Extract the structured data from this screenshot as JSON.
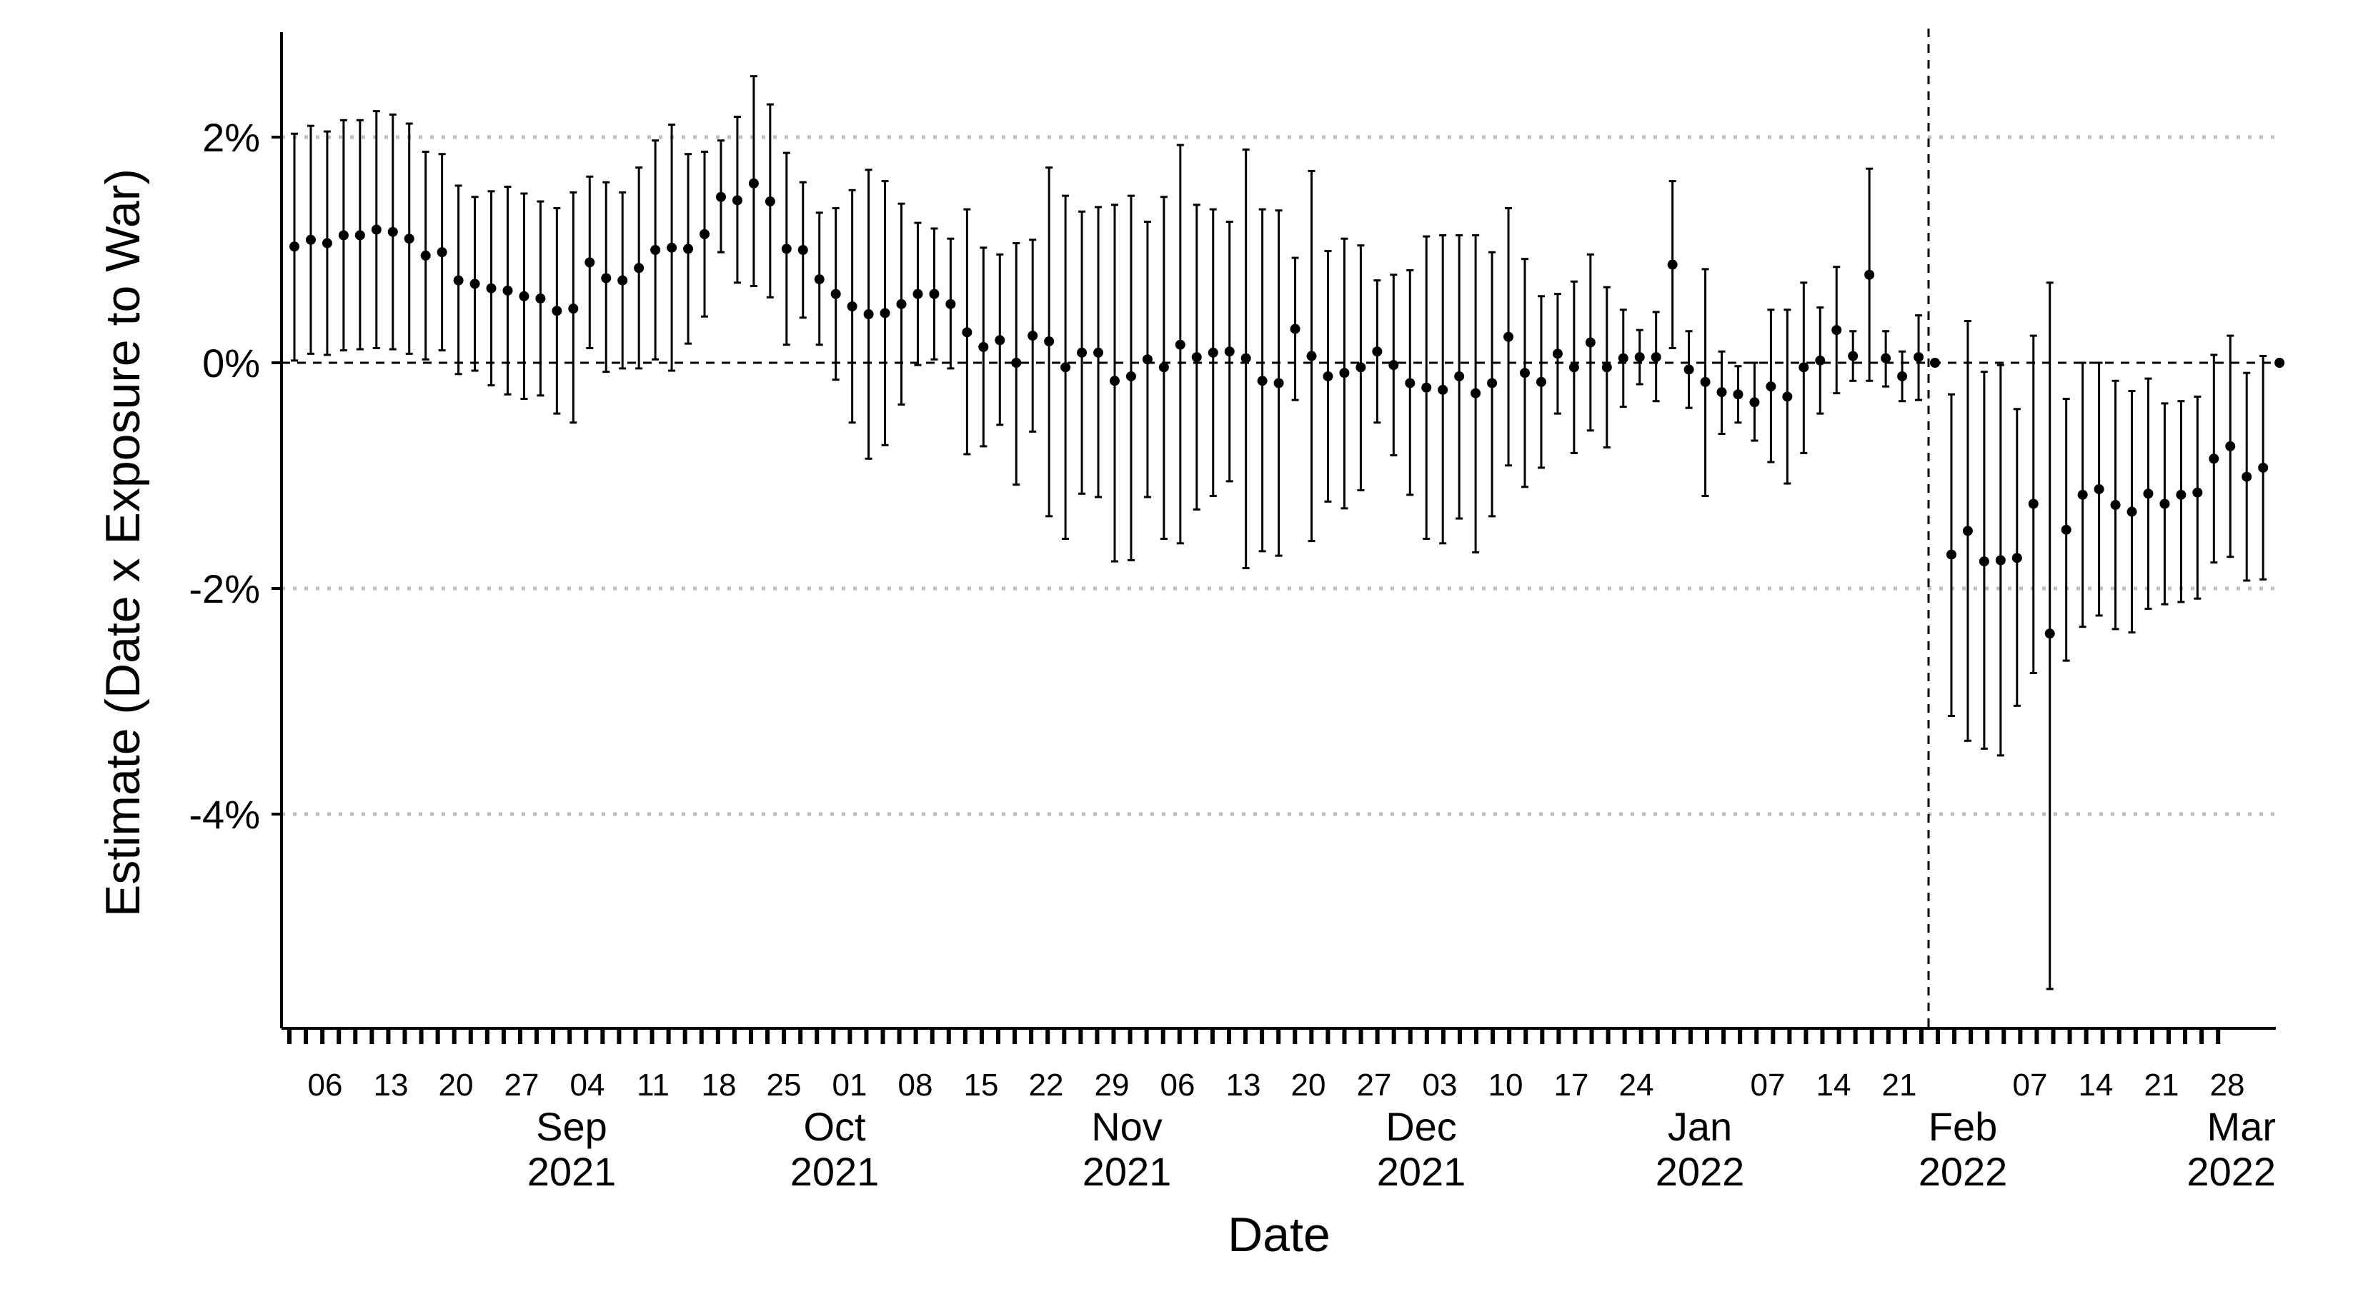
{
  "chart_data": {
    "type": "scatter",
    "subtype": "point-estimates-with-95-ci",
    "xlabel": "Date",
    "ylabel": "Estimate (Date x Exposure to War)",
    "y_unit": "percent",
    "ylim": [
      -5.9,
      2.95
    ],
    "yticks": [
      2,
      0,
      -2,
      -4
    ],
    "ytick_labels": [
      "2%",
      "0%",
      "-2%",
      "-4%"
    ],
    "y_gridlines": [
      2,
      -2,
      -4
    ],
    "reference_line_y": 0,
    "reference_line_x": "2022-02-24",
    "grid": "dotted horizontal at 2%, -2%, -4%",
    "xlim": [
      "2021-08-29",
      "2022-03-01"
    ],
    "x_day_labels": [
      {
        "date": "2021-08-06",
        "label": "06"
      },
      {
        "date": "2021-08-13",
        "label": "13"
      },
      {
        "date": "2021-08-20",
        "label": "20"
      },
      {
        "date": "2021-08-27",
        "label": "27"
      },
      {
        "date": "2021-09-04",
        "label": "04"
      },
      {
        "date": "2021-09-11",
        "label": "11"
      },
      {
        "date": "2021-09-18",
        "label": "18"
      },
      {
        "date": "2021-09-25",
        "label": "25"
      },
      {
        "date": "2021-10-01",
        "label": "01"
      },
      {
        "date": "2021-10-08",
        "label": "08"
      },
      {
        "date": "2021-10-15",
        "label": "15"
      },
      {
        "date": "2021-10-22",
        "label": "22"
      },
      {
        "date": "2021-10-29",
        "label": "29"
      },
      {
        "date": "2021-11-06",
        "label": "06"
      },
      {
        "date": "2021-11-13",
        "label": "13"
      },
      {
        "date": "2021-11-20",
        "label": "20"
      },
      {
        "date": "2021-11-27",
        "label": "27"
      },
      {
        "date": "2021-12-03",
        "label": "03"
      },
      {
        "date": "2021-12-10",
        "label": "10"
      },
      {
        "date": "2021-12-17",
        "label": "17"
      },
      {
        "date": "2021-12-24",
        "label": "24"
      },
      {
        "date": "2022-01-07",
        "label": "07"
      },
      {
        "date": "2022-01-14",
        "label": "14"
      },
      {
        "date": "2022-01-21",
        "label": "21"
      },
      {
        "date": "2022-02-07",
        "label": "07"
      },
      {
        "date": "2022-02-14",
        "label": "14"
      },
      {
        "date": "2022-02-21",
        "label": "21"
      },
      {
        "date": "2022-02-28",
        "label": "28"
      }
    ],
    "x_month_labels": [
      {
        "month": "Sep",
        "year": "2021",
        "date": "2021-09-01"
      },
      {
        "month": "Oct",
        "year": "2021",
        "date": "2021-10-01"
      },
      {
        "month": "Nov",
        "year": "2021",
        "date": "2021-11-01"
      },
      {
        "month": "Dec",
        "year": "2021",
        "date": "2021-12-01"
      },
      {
        "month": "Jan",
        "year": "2022",
        "date": "2022-01-01"
      },
      {
        "month": "Feb",
        "year": "2022",
        "date": "2022-02-01"
      },
      {
        "month": "Mar",
        "year": "2022",
        "date": "2022-03-01"
      }
    ],
    "points": [
      {
        "date": "2021-08-03",
        "y": 1.03,
        "lo": 0.02,
        "hi": 2.03
      },
      {
        "date": "2021-08-05",
        "y": 1.09,
        "lo": 0.08,
        "hi": 2.1
      },
      {
        "date": "2021-08-07",
        "y": 1.06,
        "lo": 0.07,
        "hi": 2.05
      },
      {
        "date": "2021-08-09",
        "y": 1.13,
        "lo": 0.11,
        "hi": 2.15
      },
      {
        "date": "2021-08-11",
        "y": 1.13,
        "lo": 0.12,
        "hi": 2.15
      },
      {
        "date": "2021-08-13",
        "y": 1.18,
        "lo": 0.13,
        "hi": 2.23
      },
      {
        "date": "2021-08-15",
        "y": 1.16,
        "lo": 0.12,
        "hi": 2.2
      },
      {
        "date": "2021-08-17",
        "y": 1.1,
        "lo": 0.08,
        "hi": 2.12
      },
      {
        "date": "2021-08-19",
        "y": 0.95,
        "lo": 0.03,
        "hi": 1.87
      },
      {
        "date": "2021-08-21",
        "y": 0.98,
        "lo": 0.11,
        "hi": 1.85
      },
      {
        "date": "2021-08-23",
        "y": 0.73,
        "lo": -0.1,
        "hi": 1.57
      },
      {
        "date": "2021-08-25",
        "y": 0.7,
        "lo": -0.07,
        "hi": 1.47
      },
      {
        "date": "2021-08-27",
        "y": 0.66,
        "lo": -0.2,
        "hi": 1.52
      },
      {
        "date": "2021-08-29",
        "y": 0.64,
        "lo": -0.28,
        "hi": 1.56
      },
      {
        "date": "2021-08-31",
        "y": 0.59,
        "lo": -0.32,
        "hi": 1.5
      },
      {
        "date": "2021-09-02",
        "y": 0.57,
        "lo": -0.29,
        "hi": 1.43
      },
      {
        "date": "2021-09-04",
        "y": 0.46,
        "lo": -0.45,
        "hi": 1.37
      },
      {
        "date": "2021-09-06",
        "y": 0.48,
        "lo": -0.53,
        "hi": 1.51
      },
      {
        "date": "2021-09-08",
        "y": 0.89,
        "lo": 0.13,
        "hi": 1.65
      },
      {
        "date": "2021-09-10",
        "y": 0.75,
        "lo": -0.08,
        "hi": 1.6
      },
      {
        "date": "2021-09-12",
        "y": 0.73,
        "lo": -0.05,
        "hi": 1.51
      },
      {
        "date": "2021-09-14",
        "y": 0.84,
        "lo": -0.05,
        "hi": 1.73
      },
      {
        "date": "2021-09-16",
        "y": 1.0,
        "lo": 0.03,
        "hi": 1.97
      },
      {
        "date": "2021-09-18",
        "y": 1.02,
        "lo": -0.07,
        "hi": 2.11
      },
      {
        "date": "2021-09-20",
        "y": 1.01,
        "lo": 0.17,
        "hi": 1.85
      },
      {
        "date": "2021-09-22",
        "y": 1.14,
        "lo": 0.41,
        "hi": 1.87
      },
      {
        "date": "2021-09-24",
        "y": 1.47,
        "lo": 0.98,
        "hi": 1.97
      },
      {
        "date": "2021-09-26",
        "y": 1.44,
        "lo": 0.71,
        "hi": 2.18
      },
      {
        "date": "2021-09-28",
        "y": 1.59,
        "lo": 0.68,
        "hi": 2.54
      },
      {
        "date": "2021-09-30",
        "y": 1.43,
        "lo": 0.58,
        "hi": 2.29
      },
      {
        "date": "2021-10-02",
        "y": 1.01,
        "lo": 0.16,
        "hi": 1.86
      },
      {
        "date": "2021-10-04",
        "y": 1.0,
        "lo": 0.4,
        "hi": 1.6
      },
      {
        "date": "2021-10-06",
        "y": 0.74,
        "lo": 0.16,
        "hi": 1.33
      },
      {
        "date": "2021-10-08",
        "y": 0.61,
        "lo": -0.15,
        "hi": 1.37
      },
      {
        "date": "2021-10-10",
        "y": 0.5,
        "lo": -0.53,
        "hi": 1.53
      },
      {
        "date": "2021-10-12",
        "y": 0.43,
        "lo": -0.85,
        "hi": 1.71
      },
      {
        "date": "2021-10-14",
        "y": 0.44,
        "lo": -0.73,
        "hi": 1.61
      },
      {
        "date": "2021-10-16",
        "y": 0.52,
        "lo": -0.37,
        "hi": 1.41
      },
      {
        "date": "2021-10-18",
        "y": 0.61,
        "lo": -0.02,
        "hi": 1.24
      },
      {
        "date": "2021-10-20",
        "y": 0.61,
        "lo": 0.03,
        "hi": 1.19
      },
      {
        "date": "2021-10-22",
        "y": 0.52,
        "lo": -0.05,
        "hi": 1.1
      },
      {
        "date": "2021-10-24",
        "y": 0.27,
        "lo": -0.81,
        "hi": 1.36
      },
      {
        "date": "2021-10-26",
        "y": 0.14,
        "lo": -0.74,
        "hi": 1.02
      },
      {
        "date": "2021-10-28",
        "y": 0.2,
        "lo": -0.55,
        "hi": 0.96
      },
      {
        "date": "2021-10-30",
        "y": 0.0,
        "lo": -1.08,
        "hi": 1.06
      },
      {
        "date": "2021-11-01",
        "y": 0.24,
        "lo": -0.61,
        "hi": 1.09
      },
      {
        "date": "2021-11-03",
        "y": 0.19,
        "lo": -1.36,
        "hi": 1.73
      },
      {
        "date": "2021-11-05",
        "y": -0.04,
        "lo": -1.56,
        "hi": 1.48
      },
      {
        "date": "2021-11-07",
        "y": 0.09,
        "lo": -1.16,
        "hi": 1.34
      },
      {
        "date": "2021-11-09",
        "y": 0.09,
        "lo": -1.19,
        "hi": 1.38
      },
      {
        "date": "2021-11-11",
        "y": -0.16,
        "lo": -1.76,
        "hi": 1.4
      },
      {
        "date": "2021-11-13",
        "y": -0.12,
        "lo": -1.75,
        "hi": 1.48
      },
      {
        "date": "2021-11-15",
        "y": 0.03,
        "lo": -1.19,
        "hi": 1.25
      },
      {
        "date": "2021-11-17",
        "y": -0.04,
        "lo": -1.56,
        "hi": 1.47
      },
      {
        "date": "2021-11-19",
        "y": 0.16,
        "lo": -1.6,
        "hi": 1.93
      },
      {
        "date": "2021-11-21",
        "y": 0.05,
        "lo": -1.3,
        "hi": 1.4
      },
      {
        "date": "2021-11-23",
        "y": 0.09,
        "lo": -1.18,
        "hi": 1.36
      },
      {
        "date": "2021-11-25",
        "y": 0.1,
        "lo": -1.05,
        "hi": 1.25
      },
      {
        "date": "2021-11-27",
        "y": 0.04,
        "lo": -1.82,
        "hi": 1.89
      },
      {
        "date": "2021-11-29",
        "y": -0.16,
        "lo": -1.67,
        "hi": 1.36
      },
      {
        "date": "2021-12-01",
        "y": -0.18,
        "lo": -1.71,
        "hi": 1.35
      },
      {
        "date": "2021-12-03",
        "y": 0.3,
        "lo": -0.33,
        "hi": 0.93
      },
      {
        "date": "2021-12-05",
        "y": 0.06,
        "lo": -1.58,
        "hi": 1.7
      },
      {
        "date": "2021-12-07",
        "y": -0.12,
        "lo": -1.23,
        "hi": 0.99
      },
      {
        "date": "2021-12-09",
        "y": -0.09,
        "lo": -1.29,
        "hi": 1.1
      },
      {
        "date": "2021-12-11",
        "y": -0.04,
        "lo": -1.13,
        "hi": 1.04
      },
      {
        "date": "2021-12-13",
        "y": 0.1,
        "lo": -0.53,
        "hi": 0.73
      },
      {
        "date": "2021-12-15",
        "y": -0.02,
        "lo": -0.82,
        "hi": 0.78
      },
      {
        "date": "2021-12-17",
        "y": -0.18,
        "lo": -1.17,
        "hi": 0.82
      },
      {
        "date": "2021-12-19",
        "y": -0.22,
        "lo": -1.56,
        "hi": 1.12
      },
      {
        "date": "2021-12-21",
        "y": -0.24,
        "lo": -1.6,
        "hi": 1.13
      },
      {
        "date": "2021-12-23",
        "y": -0.12,
        "lo": -1.38,
        "hi": 1.13
      },
      {
        "date": "2021-12-25",
        "y": -0.27,
        "lo": -1.68,
        "hi": 1.13
      },
      {
        "date": "2021-12-27",
        "y": -0.18,
        "lo": -1.36,
        "hi": 0.98
      },
      {
        "date": "2021-12-29",
        "y": 0.23,
        "lo": -0.91,
        "hi": 1.37
      },
      {
        "date": "2021-12-31",
        "y": -0.09,
        "lo": -1.1,
        "hi": 0.92
      },
      {
        "date": "2022-01-02",
        "y": -0.17,
        "lo": -0.93,
        "hi": 0.59
      },
      {
        "date": "2022-01-04",
        "y": 0.08,
        "lo": -0.45,
        "hi": 0.61
      },
      {
        "date": "2022-01-06",
        "y": -0.04,
        "lo": -0.8,
        "hi": 0.72
      },
      {
        "date": "2022-01-08",
        "y": 0.18,
        "lo": -0.6,
        "hi": 0.96
      },
      {
        "date": "2022-01-10",
        "y": -0.04,
        "lo": -0.75,
        "hi": 0.67
      },
      {
        "date": "2022-01-12",
        "y": 0.04,
        "lo": -0.39,
        "hi": 0.47
      },
      {
        "date": "2022-01-14",
        "y": 0.05,
        "lo": -0.19,
        "hi": 0.29
      },
      {
        "date": "2022-01-16",
        "y": 0.05,
        "lo": -0.34,
        "hi": 0.45
      },
      {
        "date": "2022-01-18",
        "y": 0.87,
        "lo": 0.13,
        "hi": 1.61
      },
      {
        "date": "2022-01-20",
        "y": -0.06,
        "lo": -0.4,
        "hi": 0.28
      },
      {
        "date": "2022-01-22",
        "y": -0.17,
        "lo": -1.18,
        "hi": 0.83
      },
      {
        "date": "2022-01-24",
        "y": -0.26,
        "lo": -0.63,
        "hi": 0.1
      },
      {
        "date": "2022-01-26",
        "y": -0.28,
        "lo": -0.53,
        "hi": -0.03
      },
      {
        "date": "2022-01-28",
        "y": -0.35,
        "lo": -0.69,
        "hi": 0.0
      },
      {
        "date": "2022-01-30",
        "y": -0.21,
        "lo": -0.88,
        "hi": 0.47
      },
      {
        "date": "2022-02-01",
        "y": -0.3,
        "lo": -1.07,
        "hi": 0.47
      },
      {
        "date": "2022-02-03",
        "y": -0.04,
        "lo": -0.8,
        "hi": 0.71
      },
      {
        "date": "2022-02-05",
        "y": 0.02,
        "lo": -0.45,
        "hi": 0.49
      },
      {
        "date": "2022-02-07",
        "y": 0.29,
        "lo": -0.27,
        "hi": 0.85
      },
      {
        "date": "2022-02-09",
        "y": 0.06,
        "lo": -0.16,
        "hi": 0.28
      },
      {
        "date": "2022-02-11",
        "y": 0.78,
        "lo": -0.16,
        "hi": 1.72
      },
      {
        "date": "2022-02-13",
        "y": 0.04,
        "lo": -0.21,
        "hi": 0.28
      },
      {
        "date": "2022-02-15",
        "y": -0.12,
        "lo": -0.34,
        "hi": 0.1
      },
      {
        "date": "2022-02-17",
        "y": 0.05,
        "lo": -0.33,
        "hi": 0.42
      },
      {
        "date": "2022-02-19",
        "y": 0.0,
        "lo": 0.0,
        "hi": 0.0
      },
      {
        "date": "2022-02-21",
        "y": -1.7,
        "lo": -3.13,
        "hi": -0.28
      },
      {
        "date": "2022-02-23",
        "y": -1.49,
        "lo": -3.35,
        "hi": 0.37
      },
      {
        "date": "2022-02-25",
        "y": -1.76,
        "lo": -3.42,
        "hi": -0.08
      },
      {
        "date": "2022-02-27",
        "y": -1.75,
        "lo": -3.48,
        "hi": -0.02
      },
      {
        "date": "2022-03-01",
        "y": -1.73,
        "lo": -3.04,
        "hi": -0.41
      },
      {
        "date": "2022-03-03",
        "y": -1.25,
        "lo": -2.75,
        "hi": 0.24
      },
      {
        "date": "2022-03-05",
        "y": -2.4,
        "lo": -5.55,
        "hi": 0.71
      },
      {
        "date": "2022-03-07",
        "y": -1.48,
        "lo": -2.64,
        "hi": -0.32
      },
      {
        "date": "2022-03-09",
        "y": -1.17,
        "lo": -2.34,
        "hi": 0.0
      },
      {
        "date": "2022-03-11",
        "y": -1.12,
        "lo": -2.24,
        "hi": 0.0
      },
      {
        "date": "2022-03-13",
        "y": -1.26,
        "lo": -2.36,
        "hi": -0.16
      },
      {
        "date": "2022-03-15",
        "y": -1.32,
        "lo": -2.39,
        "hi": -0.25
      },
      {
        "date": "2022-03-17",
        "y": -1.16,
        "lo": -2.18,
        "hi": -0.14
      },
      {
        "date": "2022-03-19",
        "y": -1.25,
        "lo": -2.14,
        "hi": -0.36
      },
      {
        "date": "2022-03-21",
        "y": -1.17,
        "lo": -2.12,
        "hi": -0.34
      },
      {
        "date": "2022-03-23",
        "y": -1.15,
        "lo": -2.09,
        "hi": -0.3
      },
      {
        "date": "2022-03-25",
        "y": -0.85,
        "lo": -1.77,
        "hi": 0.07
      },
      {
        "date": "2022-03-27",
        "y": -0.74,
        "lo": -1.72,
        "hi": 0.24
      },
      {
        "date": "2022-03-29",
        "y": -1.01,
        "lo": -1.93,
        "hi": -0.09
      },
      {
        "date": "2022-03-31",
        "y": -0.93,
        "lo": -1.92,
        "hi": 0.06
      },
      {
        "date": "2022-04-02",
        "y": 0.0,
        "lo": 0.0,
        "hi": 0.0
      }
    ]
  }
}
